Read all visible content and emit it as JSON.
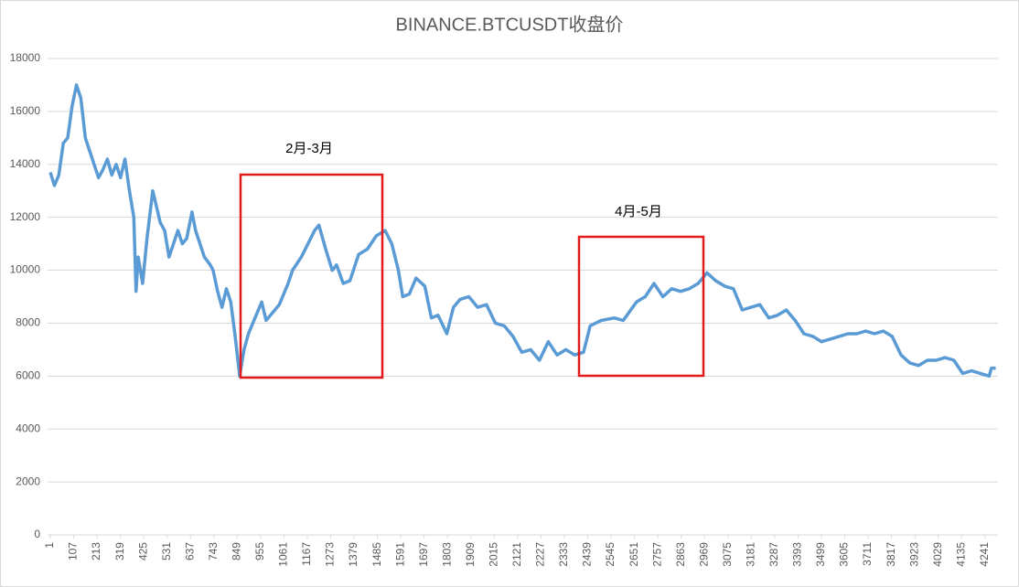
{
  "chart_data": {
    "type": "line",
    "title": "BINANCE.BTCUSDT收盘价",
    "annotations": [
      "2月-3月",
      "4月-5月"
    ],
    "color": "#5b9bd5",
    "grid": true,
    "ylim": [
      0,
      18000
    ],
    "yticks": [
      0,
      2000,
      4000,
      6000,
      8000,
      10000,
      12000,
      14000,
      16000,
      18000
    ],
    "xlim": [
      -10,
      4300
    ],
    "xticks": [
      1,
      107,
      213,
      319,
      425,
      531,
      637,
      743,
      849,
      955,
      1061,
      1167,
      1273,
      1379,
      1485,
      1591,
      1697,
      1803,
      1909,
      2015,
      2121,
      2227,
      2333,
      2439,
      2545,
      2651,
      2757,
      2863,
      2969,
      3075,
      3181,
      3287,
      3393,
      3499,
      3605,
      3711,
      3817,
      3923,
      4029,
      4135,
      4241
    ],
    "x": [
      1,
      20,
      40,
      60,
      80,
      100,
      120,
      140,
      160,
      180,
      200,
      220,
      240,
      260,
      280,
      300,
      320,
      340,
      360,
      380,
      390,
      400,
      420,
      440,
      466,
      500,
      520,
      540,
      560,
      580,
      600,
      620,
      644,
      660,
      680,
      700,
      727,
      740,
      760,
      780,
      800,
      820,
      840,
      860,
      880,
      900,
      920,
      940,
      960,
      980,
      1000,
      1040,
      1080,
      1100,
      1140,
      1170,
      1200,
      1220,
      1250,
      1280,
      1300,
      1330,
      1360,
      1400,
      1440,
      1480,
      1520,
      1550,
      1580,
      1600,
      1630,
      1660,
      1700,
      1730,
      1760,
      1800,
      1830,
      1860,
      1900,
      1940,
      1980,
      2020,
      2060,
      2100,
      2140,
      2180,
      2220,
      2260,
      2300,
      2340,
      2380,
      2420,
      2450,
      2500,
      2560,
      2600,
      2660,
      2700,
      2740,
      2780,
      2820,
      2860,
      2900,
      2940,
      2980,
      3020,
      3060,
      3100,
      3140,
      3180,
      3220,
      3260,
      3300,
      3340,
      3380,
      3420,
      3460,
      3500,
      3540,
      3580,
      3620,
      3660,
      3700,
      3740,
      3780,
      3820,
      3860,
      3900,
      3940,
      3980,
      4020,
      4060,
      4100,
      4140,
      4180,
      4220,
      4260,
      4270,
      4290
    ],
    "values": [
      13700,
      13200,
      13600,
      14800,
      15000,
      16200,
      17000,
      16500,
      15000,
      14500,
      14000,
      13500,
      13800,
      14200,
      13600,
      14000,
      13500,
      14200,
      13000,
      12000,
      9200,
      10500,
      9500,
      11200,
      13000,
      11800,
      11500,
      10500,
      11000,
      11500,
      11000,
      11200,
      12200,
      11500,
      11000,
      10500,
      10200,
      10000,
      9200,
      8600,
      9300,
      8800,
      7500,
      6000,
      7000,
      7600,
      8000,
      8400,
      8800,
      8100,
      8300,
      8700,
      9500,
      10000,
      10500,
      11000,
      11500,
      11700,
      10800,
      10000,
      10200,
      9500,
      9600,
      10600,
      10800,
      11300,
      11500,
      11000,
      10000,
      9000,
      9100,
      9700,
      9400,
      8200,
      8300,
      7600,
      8600,
      8900,
      9000,
      8600,
      8700,
      8000,
      7900,
      7500,
      6900,
      7000,
      6600,
      7300,
      6800,
      7000,
      6800,
      6900,
      7900,
      8100,
      8200,
      8100,
      8800,
      9000,
      9500,
      9000,
      9300,
      9200,
      9300,
      9500,
      9900,
      9600,
      9400,
      9300,
      8500,
      8600,
      8700,
      8200,
      8300,
      8500,
      8100,
      7600,
      7500,
      7300,
      7400,
      7500,
      7600,
      7600,
      7700,
      7600,
      7700,
      7500,
      6800,
      6500,
      6400,
      6600,
      6600,
      6700,
      6600,
      6100,
      6200,
      6100,
      6000,
      6300,
      6300
    ]
  }
}
